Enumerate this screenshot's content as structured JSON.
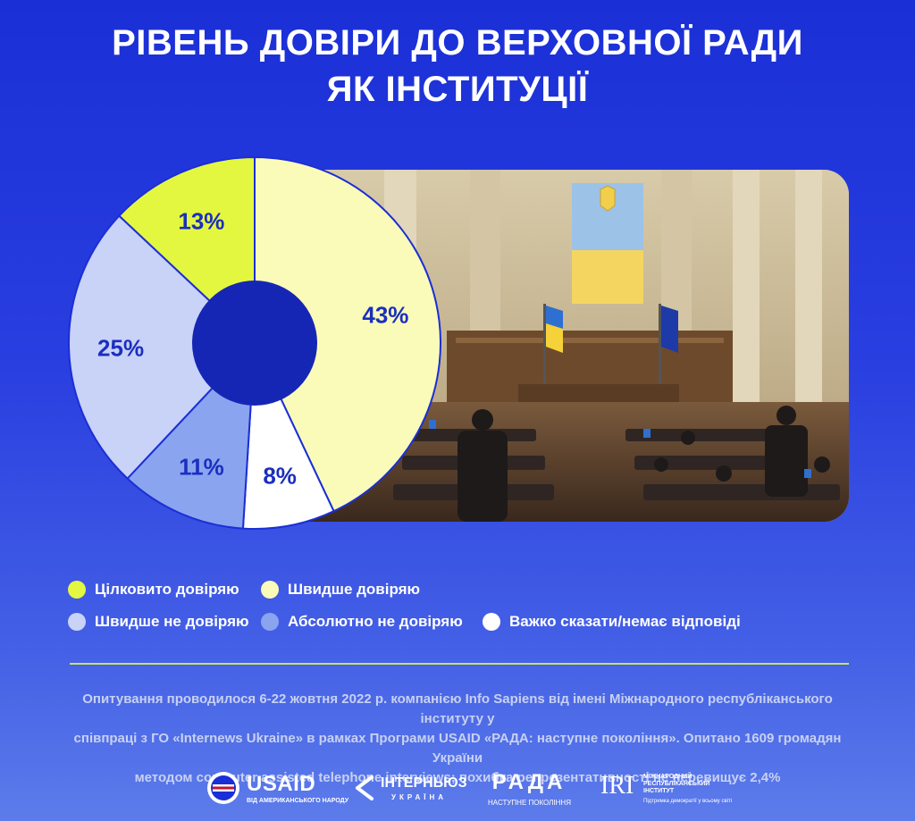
{
  "title_line1": "РІВЕНЬ ДОВІРИ ДО ВЕРХОВНОЇ РАДИ",
  "title_line2": "ЯК ІНСТИТУЦІЇ",
  "chart_data": {
    "type": "pie",
    "variant": "donut",
    "start_angle_deg": 0,
    "direction": "clockwise",
    "slices": [
      {
        "label": "Швидше довіряю",
        "value": 43,
        "display": "43%",
        "color": "#fbfbb9",
        "text_color": "#1a2fbf"
      },
      {
        "label": "Важко сказати/немає відповіді",
        "value": 8,
        "display": "8%",
        "color": "#ffffff",
        "text_color": "#1a2fbf"
      },
      {
        "label": "Абсолютно не довіряю",
        "value": 11,
        "display": "11%",
        "color": "#8aa4f0",
        "text_color": "#1a2fbf"
      },
      {
        "label": "Швидше не довіряю",
        "value": 25,
        "display": "25%",
        "color": "#c9d2f7",
        "text_color": "#1a2fbf"
      },
      {
        "label": "Цілковито довіряю",
        "value": 13,
        "display": "13%",
        "color": "#e4f740",
        "text_color": "#1a2fbf"
      }
    ],
    "hole_color": "#1626b4"
  },
  "legend": {
    "items": [
      {
        "label": "Цілковито довіряю",
        "color": "#e4f740"
      },
      {
        "label": "Швидше довіряю",
        "color": "#fbfbb9"
      },
      {
        "label": "Швидше не довіряю",
        "color": "#c9d2f7"
      },
      {
        "label": "Абсолютно не довіряю",
        "color": "#8aa4f0"
      },
      {
        "label": "Важко сказати/немає відповіді",
        "color": "#ffffff"
      }
    ]
  },
  "note": {
    "line1": "Опитування проводилося 6-22 жовтня 2022 р. компанією Info Sapiens від імені Міжнародного республіканського інституту у",
    "line2": "співпраці з ГО «Internews Ukraine» в рамках Програми USAID «РАДА: наступне покоління». Опитано 1609 громадян України",
    "line3": "методом computer assisted telephone interviews; похибка репрезентативності не перевищує 2,4%"
  },
  "logos": {
    "usaid": "USAID",
    "usaid_sub": "ВІД АМЕРИКАНСЬКОГО НАРОДУ",
    "internews": "ІНТЕРНЬЮЗ",
    "internews_sub": "УКРАЇНА",
    "rada": "РАДА",
    "rada_sub": "НАСТУПНЕ ПОКОЛІННЯ",
    "iri": "IRI",
    "iri_line1": "МІЖНАРОДНИЙ",
    "iri_line2": "РЕСПУБЛІКАНСЬКИЙ",
    "iri_line3": "ІНСТИТУТ",
    "iri_sub": "Підтримка демократії у всьому світі"
  }
}
